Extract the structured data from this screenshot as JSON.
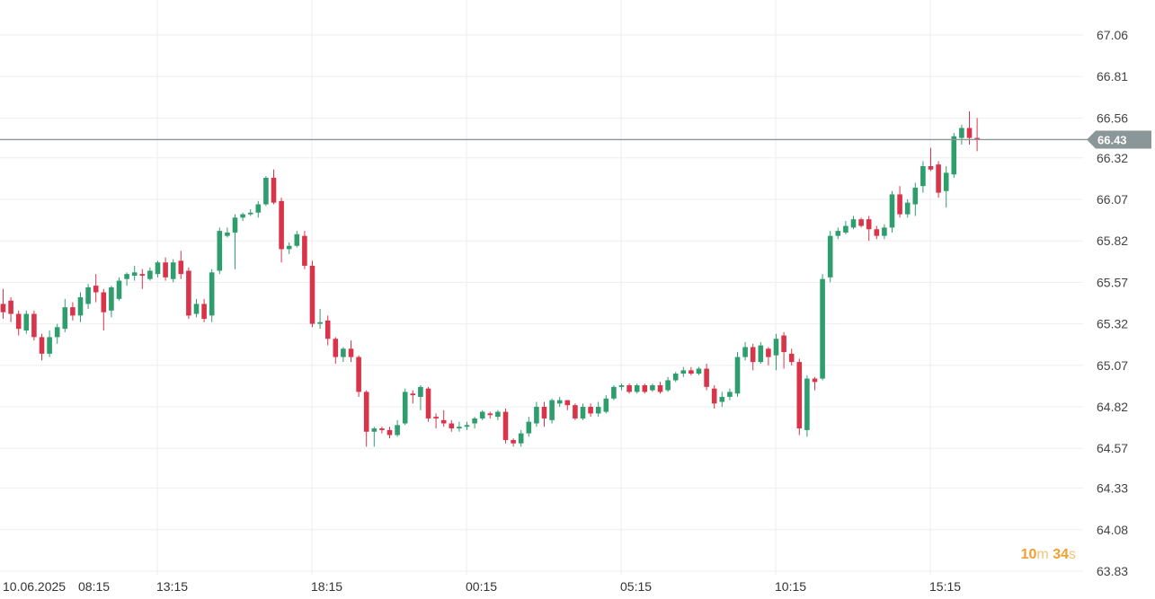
{
  "chart_data": {
    "type": "candlestick",
    "y_ticks": [
      "67.06",
      "66.81",
      "66.56",
      "66.32",
      "66.07",
      "65.82",
      "65.57",
      "65.32",
      "65.07",
      "64.82",
      "64.57",
      "64.33",
      "64.08",
      "63.83"
    ],
    "ylim": [
      63.83,
      67.06
    ],
    "x_ticks": [
      "10.06.2025",
      "08:15",
      "13:15",
      "18:15",
      "00:15",
      "05:15",
      "10:15",
      "15:15"
    ],
    "last_price": "66.43",
    "last_price_value": 66.43,
    "grid": true,
    "colors": {
      "up": "#2e9e6e",
      "down": "#d9344a",
      "price_line": "#8a9698",
      "price_label_bg": "#8a9698",
      "grid": "#eeeeee"
    },
    "candles": [
      [
        65.44,
        65.39,
        65.53,
        65.35
      ],
      [
        65.46,
        65.38,
        65.48,
        65.33
      ],
      [
        65.38,
        65.29,
        65.4,
        65.25
      ],
      [
        65.28,
        65.38,
        65.4,
        65.26
      ],
      [
        65.38,
        65.24,
        65.4,
        65.22
      ],
      [
        65.24,
        65.14,
        65.26,
        65.1
      ],
      [
        65.14,
        65.24,
        65.28,
        65.12
      ],
      [
        65.24,
        65.3,
        65.32,
        65.2
      ],
      [
        65.29,
        65.42,
        65.47,
        65.27
      ],
      [
        65.42,
        65.37,
        65.45,
        65.34
      ],
      [
        65.37,
        65.48,
        65.51,
        65.33
      ],
      [
        65.44,
        65.54,
        65.56,
        65.41
      ],
      [
        65.55,
        65.51,
        65.62,
        65.45
      ],
      [
        65.51,
        65.39,
        65.53,
        65.28
      ],
      [
        65.4,
        65.54,
        65.55,
        65.36
      ],
      [
        65.47,
        65.58,
        65.6,
        65.46
      ],
      [
        65.59,
        65.62,
        65.63,
        65.55
      ],
      [
        65.61,
        65.63,
        65.67,
        65.58
      ],
      [
        65.62,
        65.61,
        65.65,
        65.53
      ],
      [
        65.59,
        65.64,
        65.66,
        65.58
      ],
      [
        65.62,
        65.69,
        65.7,
        65.6
      ],
      [
        65.69,
        65.6,
        65.72,
        65.58
      ],
      [
        65.59,
        65.69,
        65.71,
        65.57
      ],
      [
        65.7,
        65.62,
        65.76,
        65.59
      ],
      [
        65.64,
        65.37,
        65.66,
        65.35
      ],
      [
        65.38,
        65.44,
        65.47,
        65.36
      ],
      [
        65.44,
        65.35,
        65.47,
        65.33
      ],
      [
        65.37,
        65.63,
        65.65,
        65.33
      ],
      [
        65.64,
        65.88,
        65.9,
        65.62
      ],
      [
        65.85,
        65.87,
        65.9,
        65.84
      ],
      [
        65.87,
        65.96,
        65.98,
        65.65
      ],
      [
        65.96,
        65.98,
        65.99,
        65.94
      ],
      [
        65.98,
        65.99,
        66.01,
        65.97
      ],
      [
        65.99,
        66.04,
        66.06,
        65.96
      ],
      [
        66.04,
        66.2,
        66.21,
        66.03
      ],
      [
        66.2,
        66.05,
        66.25,
        66.04
      ],
      [
        66.06,
        65.77,
        66.08,
        65.69
      ],
      [
        65.77,
        65.79,
        65.81,
        65.74
      ],
      [
        65.79,
        65.86,
        65.88,
        65.78
      ],
      [
        65.85,
        65.67,
        65.88,
        65.65
      ],
      [
        65.67,
        65.32,
        65.7,
        65.3
      ],
      [
        65.32,
        65.33,
        65.41,
        65.29
      ],
      [
        65.34,
        65.23,
        65.37,
        65.19
      ],
      [
        65.23,
        65.12,
        65.24,
        65.08
      ],
      [
        65.12,
        65.17,
        65.18,
        65.09
      ],
      [
        65.17,
        65.12,
        65.22,
        65.09
      ],
      [
        65.12,
        64.91,
        65.13,
        64.88
      ],
      [
        64.91,
        64.67,
        64.92,
        64.58
      ],
      [
        64.67,
        64.69,
        64.7,
        64.58
      ],
      [
        64.69,
        64.68,
        64.7,
        64.66
      ],
      [
        64.68,
        64.65,
        64.7,
        64.63
      ],
      [
        64.65,
        64.71,
        64.74,
        64.64
      ],
      [
        64.72,
        64.91,
        64.93,
        64.71
      ],
      [
        64.9,
        64.89,
        64.92,
        64.84
      ],
      [
        64.88,
        64.94,
        64.95,
        64.8
      ],
      [
        64.93,
        64.75,
        64.94,
        64.73
      ],
      [
        64.76,
        64.75,
        64.78,
        64.69
      ],
      [
        64.74,
        64.72,
        64.8,
        64.7
      ],
      [
        64.72,
        64.69,
        64.74,
        64.67
      ],
      [
        64.69,
        64.7,
        64.73,
        64.67
      ],
      [
        64.7,
        64.71,
        64.73,
        64.68
      ],
      [
        64.72,
        64.75,
        64.76,
        64.69
      ],
      [
        64.75,
        64.79,
        64.8,
        64.74
      ],
      [
        64.78,
        64.77,
        64.79,
        64.75
      ],
      [
        64.76,
        64.79,
        64.8,
        64.74
      ],
      [
        64.79,
        64.62,
        64.81,
        64.6
      ],
      [
        64.62,
        64.6,
        64.63,
        64.58
      ],
      [
        64.6,
        64.66,
        64.68,
        64.58
      ],
      [
        64.66,
        64.73,
        64.76,
        64.64
      ],
      [
        64.72,
        64.82,
        64.85,
        64.7
      ],
      [
        64.82,
        64.75,
        64.85,
        64.7
      ],
      [
        64.74,
        64.86,
        64.87,
        64.72
      ],
      [
        64.84,
        64.86,
        64.88,
        64.82
      ],
      [
        64.86,
        64.83,
        64.86,
        64.8
      ],
      [
        64.83,
        64.75,
        64.84,
        64.74
      ],
      [
        64.75,
        64.82,
        64.84,
        64.74
      ],
      [
        64.82,
        64.78,
        64.84,
        64.76
      ],
      [
        64.78,
        64.82,
        64.85,
        64.76
      ],
      [
        64.79,
        64.87,
        64.89,
        64.78
      ],
      [
        64.87,
        64.94,
        64.95,
        64.86
      ],
      [
        64.94,
        64.95,
        64.96,
        64.92
      ],
      [
        64.95,
        64.91,
        64.96,
        64.9
      ],
      [
        64.91,
        64.95,
        64.96,
        64.9
      ],
      [
        64.95,
        64.91,
        64.96,
        64.9
      ],
      [
        64.92,
        64.95,
        64.96,
        64.91
      ],
      [
        64.95,
        64.91,
        64.97,
        64.9
      ],
      [
        64.92,
        64.98,
        65.0,
        64.91
      ],
      [
        64.98,
        65.02,
        65.03,
        64.97
      ],
      [
        65.02,
        65.04,
        65.06,
        65.0
      ],
      [
        65.04,
        65.02,
        65.06,
        65.01
      ],
      [
        65.02,
        65.05,
        65.06,
        65.01
      ],
      [
        65.05,
        64.94,
        65.08,
        64.92
      ],
      [
        64.93,
        64.84,
        64.95,
        64.81
      ],
      [
        64.85,
        64.88,
        64.91,
        64.82
      ],
      [
        64.88,
        64.91,
        64.93,
        64.86
      ],
      [
        64.9,
        65.12,
        65.15,
        64.88
      ],
      [
        65.12,
        65.18,
        65.21,
        65.1
      ],
      [
        65.18,
        65.09,
        65.2,
        65.04
      ],
      [
        65.09,
        65.19,
        65.21,
        65.08
      ],
      [
        65.17,
        65.12,
        65.18,
        65.07
      ],
      [
        65.13,
        65.23,
        65.26,
        65.04
      ],
      [
        65.25,
        65.15,
        65.27,
        65.05
      ],
      [
        65.14,
        65.09,
        65.17,
        65.07
      ],
      [
        65.09,
        64.69,
        65.11,
        64.65
      ],
      [
        64.68,
        64.99,
        65.01,
        64.64
      ],
      [
        64.99,
        64.97,
        65.0,
        64.92
      ],
      [
        64.99,
        65.59,
        65.62,
        64.98
      ],
      [
        65.6,
        65.85,
        65.88,
        65.57
      ],
      [
        65.85,
        65.88,
        65.9,
        65.83
      ],
      [
        65.87,
        65.91,
        65.94,
        65.86
      ],
      [
        65.9,
        65.95,
        65.97,
        65.89
      ],
      [
        65.95,
        65.91,
        65.96,
        65.9
      ],
      [
        65.95,
        65.89,
        65.97,
        65.82
      ],
      [
        65.89,
        65.85,
        65.91,
        65.83
      ],
      [
        65.85,
        65.9,
        65.92,
        65.83
      ],
      [
        65.9,
        66.1,
        66.12,
        65.87
      ],
      [
        66.1,
        65.98,
        66.15,
        65.96
      ],
      [
        65.98,
        66.05,
        66.07,
        65.96
      ],
      [
        66.04,
        66.14,
        66.17,
        65.97
      ],
      [
        66.15,
        66.27,
        66.3,
        66.11
      ],
      [
        66.27,
        66.25,
        66.38,
        66.24
      ],
      [
        66.28,
        66.11,
        66.3,
        66.08
      ],
      [
        66.12,
        66.23,
        66.27,
        66.02
      ],
      [
        66.22,
        66.45,
        66.47,
        66.2
      ],
      [
        66.44,
        66.5,
        66.52,
        66.4
      ],
      [
        66.5,
        66.44,
        66.6,
        66.4
      ],
      [
        66.44,
        66.43,
        66.56,
        66.36
      ]
    ]
  },
  "countdown": {
    "minutes": "10",
    "minutes_unit": "m",
    "seconds": "34",
    "seconds_unit": "s"
  }
}
